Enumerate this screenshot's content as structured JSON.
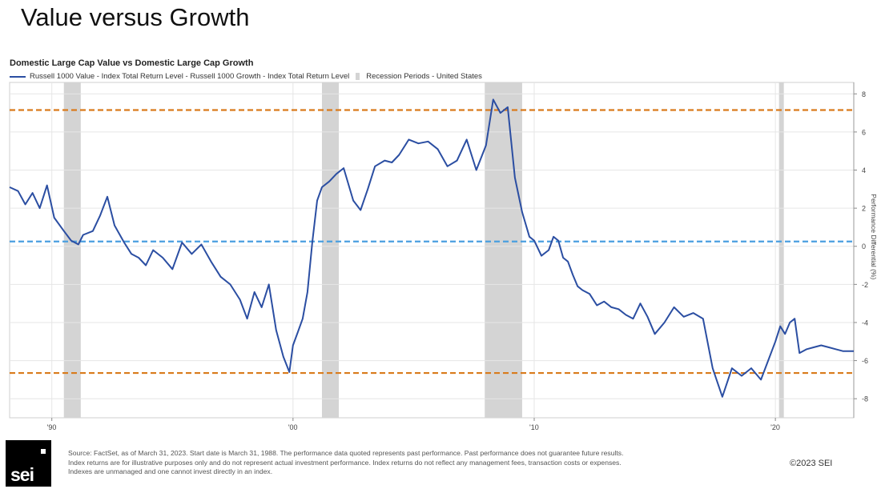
{
  "slide": {
    "title": "Value versus Growth"
  },
  "legend": {
    "series_label": "Russell 1000 Value - Index Total Return Level - Russell 1000 Growth - Index Total Return Level",
    "recession_label": "Recession Periods - United States"
  },
  "footer": {
    "logo_text": "sei",
    "source_lines": [
      "Source: FactSet, as of March 31, 2023. Start date is March 31, 1988. The performance data quoted represents past performance. Past performance does not guarantee future results.",
      "Index returns are for illustrative purposes only and do not represent actual investment performance. Index returns do not reflect any management fees, transaction costs or expenses.",
      "Indexes are unmanaged and one cannot invest directly in an index."
    ],
    "copyright": "©2023 SEI"
  },
  "colors": {
    "series": "#2b4ea2",
    "recession": "#d4d4d4",
    "upper_lower_bands": "#d97b1c",
    "mean_line": "#4a9fe0",
    "grid": "#e6e6e6"
  },
  "chart_data": {
    "type": "line",
    "title": "Domestic Large Cap Value vs Domestic Large Cap Growth",
    "xlabel": "",
    "ylabel": "Performance Differential (%)",
    "xlim": [
      1988.25,
      2023.25
    ],
    "ylim": [
      -9,
      8.6
    ],
    "x_ticks": [
      1990,
      2000,
      2010,
      2020
    ],
    "x_tick_labels": [
      "'90",
      "'00",
      "'10",
      "'20"
    ],
    "y_ticks": [
      -8,
      -6,
      -4,
      -2,
      0,
      2,
      4,
      6,
      8
    ],
    "y_tick_labels": [
      "-8",
      "-6",
      "-4",
      "-2",
      "0",
      "2",
      "4",
      "6",
      "8"
    ],
    "y_axis_side": "right",
    "grid": true,
    "series": [
      {
        "name": "Russell 1000 Value - Index Total Return Level - Russell 1000 Growth - Index Total Return Level",
        "x": [
          1988.25,
          1988.6,
          1988.9,
          1989.2,
          1989.5,
          1989.8,
          1990.1,
          1990.5,
          1990.8,
          1991.1,
          1991.3,
          1991.7,
          1992.0,
          1992.3,
          1992.6,
          1993.0,
          1993.3,
          1993.6,
          1993.9,
          1994.2,
          1994.6,
          1995.0,
          1995.4,
          1995.8,
          1996.2,
          1996.6,
          1997.0,
          1997.4,
          1997.8,
          1998.1,
          1998.4,
          1998.7,
          1999.0,
          1999.3,
          1999.6,
          1999.85,
          2000.0,
          2000.2,
          2000.4,
          2000.6,
          2000.8,
          2001.0,
          2001.2,
          2001.5,
          2001.8,
          2002.1,
          2002.5,
          2002.8,
          2003.1,
          2003.4,
          2003.8,
          2004.1,
          2004.4,
          2004.8,
          2005.2,
          2005.6,
          2006.0,
          2006.4,
          2006.8,
          2007.2,
          2007.6,
          2008.0,
          2008.3,
          2008.6,
          2008.9,
          2009.2,
          2009.5,
          2009.8,
          2010.0,
          2010.3,
          2010.6,
          2010.8,
          2011.0,
          2011.2,
          2011.4,
          2011.6,
          2011.8,
          2012.0,
          2012.3,
          2012.6,
          2012.9,
          2013.2,
          2013.5,
          2013.8,
          2014.1,
          2014.4,
          2014.7,
          2015.0,
          2015.4,
          2015.8,
          2016.2,
          2016.6,
          2017.0,
          2017.4,
          2017.8,
          2018.2,
          2018.6,
          2019.0,
          2019.4,
          2019.7,
          2020.0,
          2020.2,
          2020.4,
          2020.6,
          2020.8,
          2021.0,
          2021.3,
          2021.6,
          2021.9,
          2022.2,
          2022.5,
          2022.8,
          2023.0,
          2023.25
        ],
        "values": [
          3.1,
          2.9,
          2.2,
          2.8,
          2.0,
          3.2,
          1.5,
          0.8,
          0.3,
          0.1,
          0.6,
          0.8,
          1.6,
          2.6,
          1.1,
          0.2,
          -0.4,
          -0.6,
          -1.0,
          -0.2,
          -0.6,
          -1.2,
          0.2,
          -0.4,
          0.1,
          -0.8,
          -1.6,
          -2.0,
          -2.8,
          -3.8,
          -2.4,
          -3.2,
          -2.0,
          -4.4,
          -5.8,
          -6.6,
          -5.2,
          -4.5,
          -3.8,
          -2.4,
          0.2,
          2.4,
          3.1,
          3.4,
          3.8,
          4.1,
          2.4,
          1.9,
          3.0,
          4.2,
          4.5,
          4.4,
          4.8,
          5.6,
          5.4,
          5.5,
          5.1,
          4.2,
          4.5,
          5.6,
          4.0,
          5.3,
          7.7,
          7.0,
          7.3,
          3.6,
          1.8,
          0.5,
          0.3,
          -0.5,
          -0.2,
          0.5,
          0.3,
          -0.6,
          -0.8,
          -1.5,
          -2.1,
          -2.3,
          -2.5,
          -3.1,
          -2.9,
          -3.2,
          -3.3,
          -3.6,
          -3.8,
          -3.0,
          -3.7,
          -4.6,
          -4.0,
          -3.2,
          -3.7,
          -3.5,
          -3.8,
          -6.4,
          -7.9,
          -6.4,
          -6.8,
          -6.4,
          -7.0,
          -6.0,
          -5.0,
          -4.2,
          -4.6,
          -4.0,
          -3.8,
          -5.6,
          -5.4,
          -5.3,
          -5.2,
          -5.3,
          -5.4,
          -5.5,
          -5.5,
          -5.5
        ],
        "color": "#2b4ea2"
      }
    ],
    "recession_periods": [
      [
        1990.5,
        1991.2
      ],
      [
        2001.2,
        2001.9
      ],
      [
        2007.95,
        2009.5
      ],
      [
        2020.15,
        2020.35
      ]
    ],
    "reference_lines": [
      {
        "value": 7.15,
        "style": "dashed",
        "color": "#d97b1c"
      },
      {
        "value": 0.25,
        "style": "dashed",
        "color": "#4a9fe0"
      },
      {
        "value": -6.65,
        "style": "dashed",
        "color": "#d97b1c"
      }
    ],
    "legend_placement": "top-left"
  }
}
